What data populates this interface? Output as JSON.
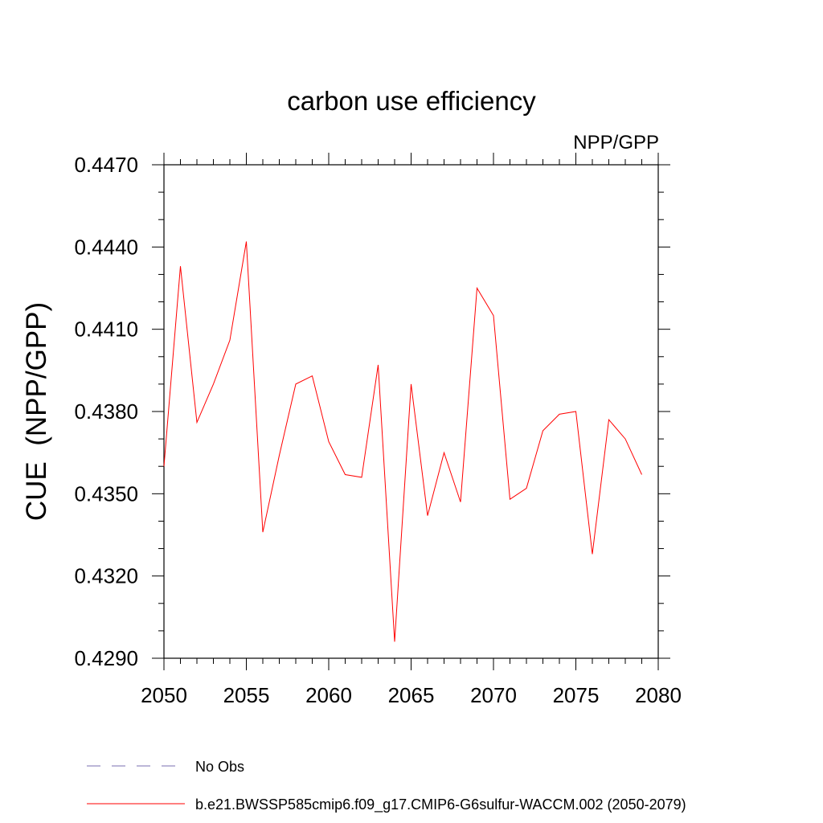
{
  "chart_data": {
    "type": "line",
    "title": "carbon use efficiency",
    "subtitle": "NPP/GPP",
    "xlabel": "",
    "ylabel": "CUE  (NPP/GPP)",
    "xlim": [
      2050,
      2080
    ],
    "ylim": [
      0.429,
      0.447
    ],
    "xticks": [
      {
        "value": 2050,
        "label": "2050"
      },
      {
        "value": 2055,
        "label": "2055"
      },
      {
        "value": 2060,
        "label": "2060"
      },
      {
        "value": 2065,
        "label": "2065"
      },
      {
        "value": 2070,
        "label": "2070"
      },
      {
        "value": 2075,
        "label": "2075"
      },
      {
        "value": 2080,
        "label": "2080"
      }
    ],
    "yticks": [
      {
        "value": 0.429,
        "label": "0.4290"
      },
      {
        "value": 0.432,
        "label": "0.4320"
      },
      {
        "value": 0.435,
        "label": "0.4350"
      },
      {
        "value": 0.438,
        "label": "0.4380"
      },
      {
        "value": 0.441,
        "label": "0.4410"
      },
      {
        "value": 0.444,
        "label": "0.4440"
      },
      {
        "value": 0.447,
        "label": "0.4470"
      }
    ],
    "grid": false,
    "legend_position": "bottom",
    "series": [
      {
        "name": "b.e21.BWSSP585cmip6.f09_g17.CMIP6-G6sulfur-WACCM.002 (2050-2079)",
        "color": "#ff0000",
        "style": "solid",
        "x": [
          2050,
          2051,
          2052,
          2053,
          2054,
          2055,
          2056,
          2057,
          2058,
          2059,
          2060,
          2061,
          2062,
          2063,
          2064,
          2065,
          2066,
          2067,
          2068,
          2069,
          2070,
          2071,
          2072,
          2073,
          2074,
          2075,
          2076,
          2077,
          2078,
          2079
        ],
        "values": [
          0.436,
          0.4433,
          0.4376,
          0.439,
          0.4406,
          0.4442,
          0.4336,
          0.4364,
          0.439,
          0.4393,
          0.4369,
          0.4357,
          0.4356,
          0.4397,
          0.4296,
          0.439,
          0.4342,
          0.4365,
          0.4347,
          0.4425,
          0.4415,
          0.4348,
          0.4352,
          0.4373,
          0.4379,
          0.438,
          0.4328,
          0.4377,
          0.437,
          0.4357
        ]
      }
    ],
    "legend": [
      {
        "label": "No Obs",
        "color": "#7a6fb0",
        "style": "dashed"
      },
      {
        "label": "b.e21.BWSSP585cmip6.f09_g17.CMIP6-G6sulfur-WACCM.002 (2050-2079)",
        "color": "#ff0000",
        "style": "solid"
      }
    ]
  }
}
